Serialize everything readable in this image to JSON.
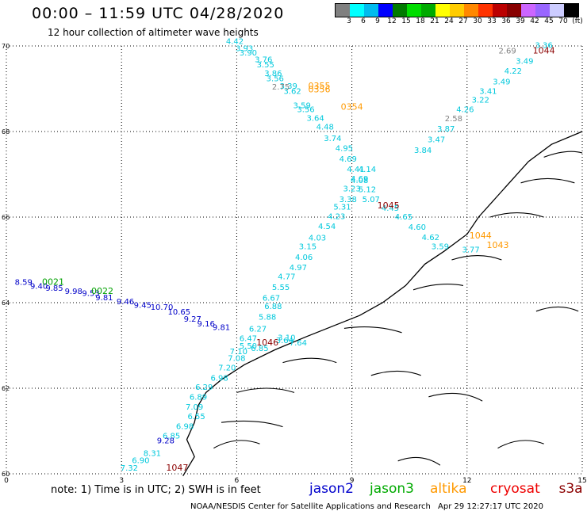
{
  "title": "00:00 – 11:59 UTC 04/28/2020",
  "subtitle": "12 hour collection of altimeter wave heights",
  "colorbar": {
    "colors": [
      "#808080",
      "#00ffff",
      "#00bbee",
      "#0000ff",
      "#007a00",
      "#00dd00",
      "#00aa00",
      "#ffff00",
      "#ffcc00",
      "#ff8800",
      "#ff3300",
      "#bb0000",
      "#880000",
      "#cc66ff",
      "#9966ff",
      "#ccccff",
      "#000000"
    ],
    "labels": [
      "3",
      "6",
      "9",
      "12",
      "15",
      "18",
      "21",
      "24",
      "27",
      "30",
      "33",
      "36",
      "39",
      "42",
      "45",
      "70",
      "(ft)"
    ]
  },
  "axes": {
    "x_ticks": [
      "0",
      "3",
      "6",
      "9",
      "12",
      "15"
    ],
    "y_ticks": [
      "70",
      "68",
      "66",
      "64",
      "62",
      "60"
    ]
  },
  "tracks": [
    {
      "color": "#00c8dc",
      "points": [
        [
          "4.42",
          5.95,
          70.05
        ],
        [
          "3.93",
          6.2,
          69.88
        ],
        [
          "3.90",
          6.3,
          69.78
        ],
        [
          "3.76",
          6.7,
          69.62
        ],
        [
          "3.55",
          6.75,
          69.5
        ],
        [
          "3.86",
          6.95,
          69.3
        ],
        [
          "3.56",
          7.0,
          69.18
        ],
        [
          "3.39",
          7.35,
          69.0
        ],
        [
          "3.62",
          7.45,
          68.88
        ],
        [
          "3.59",
          7.7,
          68.55
        ],
        [
          "3.56",
          7.8,
          68.45
        ],
        [
          "3.64",
          8.05,
          68.25
        ],
        [
          "4.48",
          8.3,
          68.05
        ],
        [
          "3.74",
          8.5,
          67.78
        ],
        [
          "4.95",
          8.8,
          67.55
        ],
        [
          "4.69",
          8.9,
          67.3
        ],
        [
          "4.41",
          9.1,
          67.06
        ],
        [
          "4.14",
          9.4,
          67.06
        ],
        [
          "4.69",
          9.2,
          66.83
        ],
        [
          "4.08",
          9.2,
          66.8
        ],
        [
          "3.23",
          9.0,
          66.6
        ],
        [
          "5.12",
          9.4,
          66.58
        ],
        [
          "3.38",
          8.9,
          66.35
        ],
        [
          "5.07",
          9.5,
          66.35
        ],
        [
          "5.31",
          8.75,
          66.18
        ],
        [
          "4.45",
          10.0,
          66.15
        ],
        [
          "4.23",
          8.6,
          65.95
        ],
        [
          "4.65",
          10.35,
          65.94
        ],
        [
          "4.54",
          8.35,
          65.72
        ],
        [
          "4.60",
          10.7,
          65.7
        ],
        [
          "4.03",
          8.1,
          65.45
        ],
        [
          "4.62",
          11.05,
          65.46
        ],
        [
          "3.15",
          7.85,
          65.25
        ],
        [
          "3.59",
          11.3,
          65.25
        ],
        [
          "4.06",
          7.75,
          65.0
        ],
        [
          "4.97",
          7.6,
          64.76
        ],
        [
          "4.77",
          7.3,
          64.55
        ],
        [
          "5.55",
          7.15,
          64.3
        ],
        [
          "6.67",
          6.9,
          64.05
        ],
        [
          "6.88",
          6.95,
          63.85
        ],
        [
          "5.88",
          6.8,
          63.6
        ],
        [
          "6.27",
          6.55,
          63.32
        ],
        [
          "6.47",
          6.3,
          63.1
        ],
        [
          "5.50",
          6.3,
          62.93
        ],
        [
          "6.85",
          6.6,
          62.87
        ],
        [
          "7.10",
          6.05,
          62.8
        ],
        [
          "7.08",
          6.0,
          62.64
        ],
        [
          "7.20",
          5.75,
          62.42
        ],
        [
          "6.98",
          5.55,
          62.18
        ],
        [
          "6.29",
          5.15,
          61.96
        ],
        [
          "6.89",
          5.0,
          61.73
        ],
        [
          "7.09",
          4.9,
          61.5
        ],
        [
          "6.55",
          4.95,
          61.28
        ],
        [
          "6.98",
          4.65,
          61.05
        ],
        [
          "6.85",
          4.3,
          60.82
        ],
        [
          "8.31",
          3.8,
          60.42
        ],
        [
          "6.90",
          3.5,
          60.25
        ],
        [
          "7.32",
          3.2,
          60.07
        ]
      ]
    },
    {
      "color": "#00c8dc",
      "points": [
        [
          "3.36",
          14.0,
          69.95
        ],
        [
          "3.49",
          13.5,
          69.58
        ],
        [
          "4.22",
          13.2,
          69.35
        ],
        [
          "3.49",
          12.9,
          69.1
        ],
        [
          "3.41",
          12.55,
          68.88
        ],
        [
          "3.22",
          12.35,
          68.68
        ],
        [
          "4.26",
          11.95,
          68.45
        ],
        [
          "3.87",
          11.45,
          68.0
        ],
        [
          "3.47",
          11.2,
          67.75
        ],
        [
          "3.84",
          10.85,
          67.5
        ],
        [
          "3.64",
          7.25,
          63.06
        ],
        [
          "7.64",
          7.6,
          63.0
        ],
        [
          "3.10",
          7.3,
          63.12
        ],
        [
          "3.77",
          12.1,
          65.18
        ]
      ]
    },
    {
      "color": "#808080",
      "points": [
        [
          "2.69",
          13.05,
          69.82
        ],
        [
          "2.58",
          11.65,
          68.24
        ],
        [
          "2.75",
          7.15,
          68.98
        ]
      ]
    },
    {
      "color": "#0000c8",
      "points": [
        [
          "9.98",
          1.75,
          64.2
        ],
        [
          "9.81",
          2.55,
          64.06
        ],
        [
          "9.46",
          3.1,
          63.96
        ],
        [
          "9.45",
          3.55,
          63.88
        ],
        [
          "10.70",
          4.05,
          63.83
        ],
        [
          "10.65",
          4.5,
          63.72
        ],
        [
          "9.27",
          4.85,
          63.56
        ],
        [
          "9.16",
          5.2,
          63.44
        ],
        [
          "9.81",
          5.6,
          63.36
        ],
        [
          "9.28",
          4.15,
          60.71
        ],
        [
          "9.40",
          0.85,
          64.32
        ],
        [
          "9.85",
          1.25,
          64.28
        ],
        [
          "8.59",
          0.45,
          64.42
        ],
        [
          "9.53",
          2.2,
          64.16
        ]
      ]
    },
    {
      "color": "#00a000",
      "points": [
        [
          "0021",
          1.22,
          64.42
        ],
        [
          "0022",
          2.5,
          64.2
        ]
      ]
    },
    {
      "color": "#ff9900",
      "points": [
        [
          "0355",
          8.15,
          69.0
        ],
        [
          "0356",
          8.15,
          68.92
        ],
        [
          "0354",
          9.0,
          68.51
        ],
        [
          "1044",
          12.35,
          65.5
        ],
        [
          "1043",
          12.8,
          65.28
        ]
      ]
    },
    {
      "color": "#8b0000",
      "points": [
        [
          "1044",
          14.0,
          69.82
        ],
        [
          "1045",
          9.95,
          66.2
        ],
        [
          "1046",
          6.8,
          63.0
        ],
        [
          "1047",
          4.45,
          60.07
        ]
      ]
    }
  ],
  "legend": {
    "note": "note:  1) Time is in UTC;  2) SWH is in feet",
    "items": [
      {
        "label": "jason2",
        "color": "#0000cc"
      },
      {
        "label": "jason3",
        "color": "#00aa00"
      },
      {
        "label": "altika",
        "color": "#ff9900"
      },
      {
        "label": "cryosat",
        "color": "#ee0000"
      },
      {
        "label": "s3a",
        "color": "#8b0000"
      }
    ]
  },
  "footer": {
    "left": "NOAA/NESDIS Center for Satellite Applications and Research",
    "right": "Apr 29 12:27:17 UTC 2020"
  }
}
